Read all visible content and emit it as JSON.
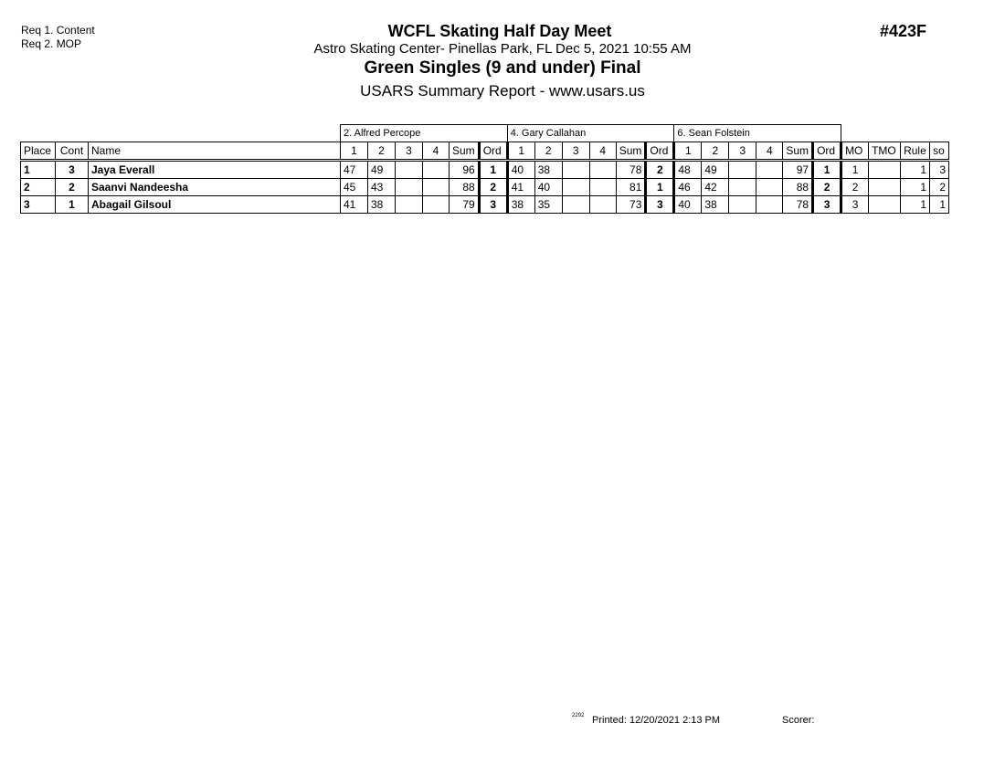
{
  "requirements": [
    "Req 1.  Content",
    "Req 2.  MOP"
  ],
  "header": {
    "title": "WCFL Skating Half Day Meet",
    "location": "Astro Skating Center- Pinellas Park, FL  Dec 5, 2021  10:55 AM",
    "event": "Green Singles (9 and under) Final",
    "report": "USARS Summary Report - www.usars.us",
    "event_id": "#423F"
  },
  "judges": [
    "2.  Alfred Percope",
    "4.  Gary  Callahan",
    "6.  Sean  Folstein"
  ],
  "columns": {
    "place": "Place",
    "cont": "Cont",
    "name": "Name",
    "marks": [
      "1",
      "2",
      "3",
      "4"
    ],
    "sum": "Sum",
    "ord": "Ord",
    "mo": "MO",
    "tmo": "TMO",
    "rule": "Rule",
    "so": "so"
  },
  "rows": [
    {
      "place": "1",
      "cont": "3",
      "name": "Jaya Everall",
      "judges": [
        {
          "m": [
            "47",
            "49",
            "",
            ""
          ],
          "sum": "96",
          "ord": "1"
        },
        {
          "m": [
            "40",
            "38",
            "",
            ""
          ],
          "sum": "78",
          "ord": "2"
        },
        {
          "m": [
            "48",
            "49",
            "",
            ""
          ],
          "sum": "97",
          "ord": "1"
        }
      ],
      "mo": "1",
      "tmo": "",
      "rule": "1",
      "so": "3"
    },
    {
      "place": "2",
      "cont": "2",
      "name": "Saanvi Nandeesha",
      "judges": [
        {
          "m": [
            "45",
            "43",
            "",
            ""
          ],
          "sum": "88",
          "ord": "2"
        },
        {
          "m": [
            "41",
            "40",
            "",
            ""
          ],
          "sum": "81",
          "ord": "1"
        },
        {
          "m": [
            "46",
            "42",
            "",
            ""
          ],
          "sum": "88",
          "ord": "2"
        }
      ],
      "mo": "2",
      "tmo": "",
      "rule": "1",
      "so": "2"
    },
    {
      "place": "3",
      "cont": "1",
      "name": "Abagail Gilsoul",
      "judges": [
        {
          "m": [
            "41",
            "38",
            "",
            ""
          ],
          "sum": "79",
          "ord": "3"
        },
        {
          "m": [
            "38",
            "35",
            "",
            ""
          ],
          "sum": "73",
          "ord": "3"
        },
        {
          "m": [
            "40",
            "38",
            "",
            ""
          ],
          "sum": "78",
          "ord": "3"
        }
      ],
      "mo": "3",
      "tmo": "",
      "rule": "1",
      "so": "1"
    }
  ],
  "footer": {
    "code": "2202",
    "printed": "Printed:  12/20/2021  2:13 PM",
    "scorer": "Scorer:"
  }
}
